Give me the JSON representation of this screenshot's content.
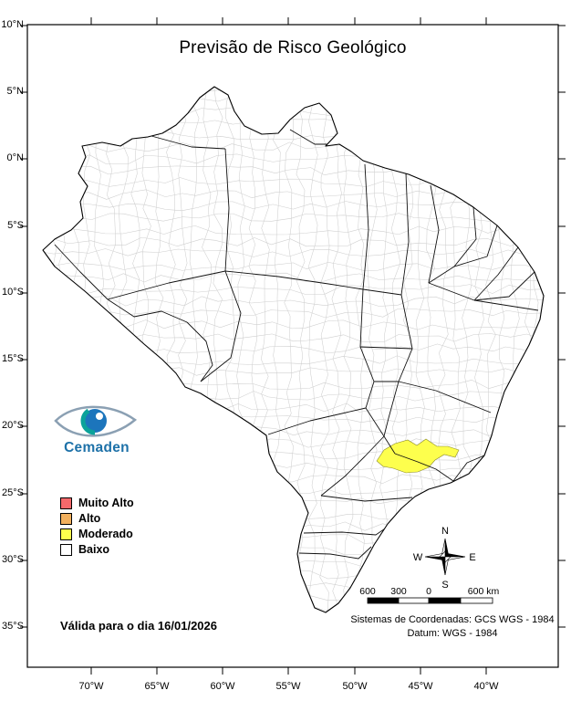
{
  "title": "Previsão de Risco Geológico",
  "logo": {
    "text": "Cemaden"
  },
  "legend": {
    "items": [
      {
        "label": "Muito Alto",
        "color": "#F4696B"
      },
      {
        "label": "Alto",
        "color": "#F2B05E"
      },
      {
        "label": "Moderado",
        "color": "#FDFF4D"
      },
      {
        "label": "Baixo",
        "color": "#FFFFFF"
      }
    ]
  },
  "risk_highlight": {
    "level": "Moderado",
    "color": "#FDFF4D"
  },
  "validity": "Válida para o dia 16/01/2026",
  "compass": {
    "n": "N",
    "s": "S",
    "e": "E",
    "w": "W"
  },
  "scalebar": {
    "labels": [
      "600",
      "300",
      "0",
      "600 km"
    ]
  },
  "projection": {
    "line1": "Sistemas de Coordenadas: GCS WGS - 1984",
    "line2": "Datum: WGS - 1984"
  },
  "axes": {
    "lat": [
      "10°N",
      "5°N",
      "0°N",
      "5°S",
      "10°S",
      "15°S",
      "20°S",
      "25°S",
      "30°S",
      "35°S"
    ],
    "lon": [
      "70°W",
      "65°W",
      "60°W",
      "55°W",
      "50°W",
      "45°W",
      "40°W"
    ]
  },
  "colors": {
    "state_border": "#111111",
    "municipality_border": "#cfcfcf"
  }
}
